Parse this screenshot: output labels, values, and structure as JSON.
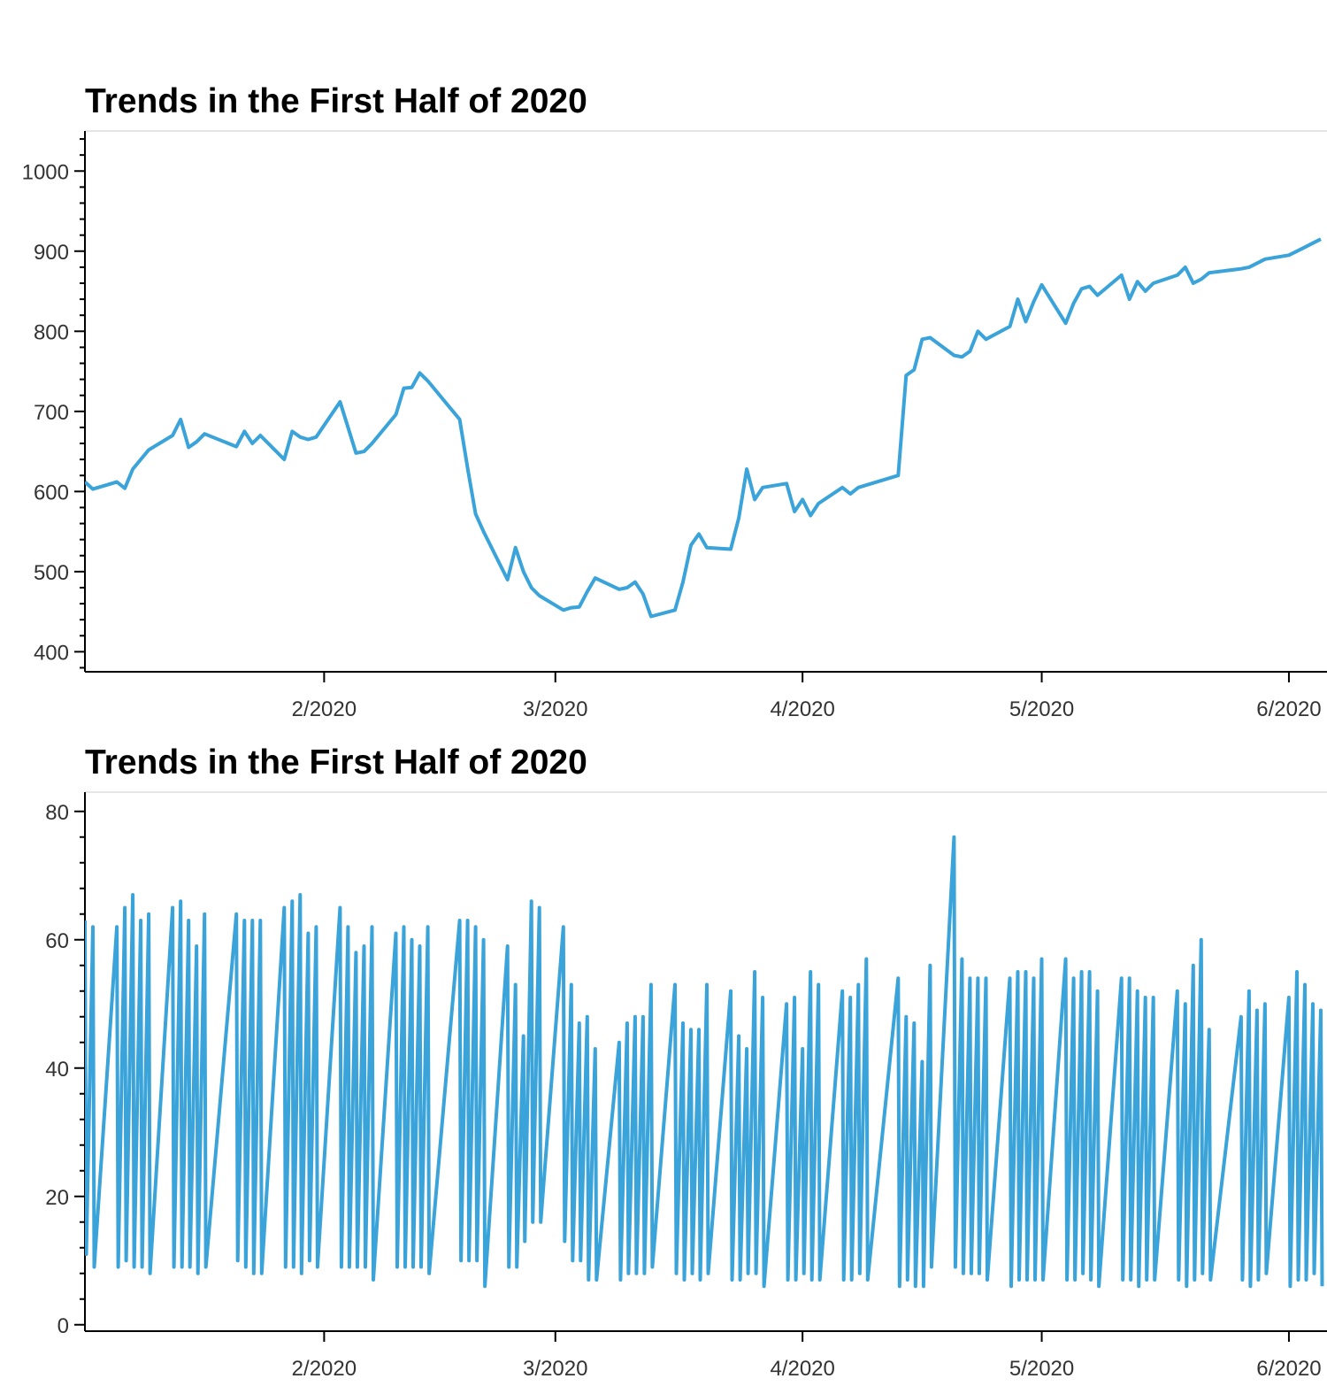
{
  "colors": {
    "line": "#3AA3D9",
    "axis": "#000000",
    "frame": "#e5e5e5"
  },
  "chart_data": [
    {
      "type": "line",
      "title": "Trends in the First Half of 2020",
      "xlabel": "",
      "ylabel": "",
      "x_ticks": [
        {
          "date": "2020-02-01",
          "label": "2/2020"
        },
        {
          "date": "2020-03-01",
          "label": "3/2020"
        },
        {
          "date": "2020-04-01",
          "label": "4/2020"
        },
        {
          "date": "2020-05-01",
          "label": "5/2020"
        },
        {
          "date": "2020-06-01",
          "label": "6/2020"
        }
      ],
      "xlim": [
        "2020-01-02",
        "2020-06-05"
      ],
      "ylim": [
        375,
        1050
      ],
      "y_ticks": [
        400,
        500,
        600,
        700,
        800,
        900,
        1000
      ],
      "grid": false,
      "series": [
        {
          "x": [
            "2020-01-02",
            "2020-01-03",
            "2020-01-06",
            "2020-01-07",
            "2020-01-08",
            "2020-01-09",
            "2020-01-10",
            "2020-01-13",
            "2020-01-14",
            "2020-01-15",
            "2020-01-16",
            "2020-01-17",
            "2020-01-21",
            "2020-01-22",
            "2020-01-23",
            "2020-01-24",
            "2020-01-27",
            "2020-01-28",
            "2020-01-29",
            "2020-01-30",
            "2020-01-31",
            "2020-02-03",
            "2020-02-04",
            "2020-02-05",
            "2020-02-06",
            "2020-02-07",
            "2020-02-10",
            "2020-02-11",
            "2020-02-12",
            "2020-02-13",
            "2020-02-14",
            "2020-02-18",
            "2020-02-19",
            "2020-02-20",
            "2020-02-21",
            "2020-02-24",
            "2020-02-25",
            "2020-02-26",
            "2020-02-27",
            "2020-02-28",
            "2020-03-02",
            "2020-03-03",
            "2020-03-04",
            "2020-03-05",
            "2020-03-06",
            "2020-03-09",
            "2020-03-10",
            "2020-03-11",
            "2020-03-12",
            "2020-03-13",
            "2020-03-16",
            "2020-03-17",
            "2020-03-18",
            "2020-03-19",
            "2020-03-20",
            "2020-03-23",
            "2020-03-24",
            "2020-03-25",
            "2020-03-26",
            "2020-03-27",
            "2020-03-30",
            "2020-03-31",
            "2020-04-01",
            "2020-04-02",
            "2020-04-03",
            "2020-04-06",
            "2020-04-07",
            "2020-04-08",
            "2020-04-09",
            "2020-04-13",
            "2020-04-14",
            "2020-04-15",
            "2020-04-16",
            "2020-04-17",
            "2020-04-20",
            "2020-04-21",
            "2020-04-22",
            "2020-04-23",
            "2020-04-24",
            "2020-04-27",
            "2020-04-28",
            "2020-04-29",
            "2020-04-30",
            "2020-05-01",
            "2020-05-04",
            "2020-05-05",
            "2020-05-06",
            "2020-05-07",
            "2020-05-08",
            "2020-05-11",
            "2020-05-12",
            "2020-05-13",
            "2020-05-14",
            "2020-05-15",
            "2020-05-18",
            "2020-05-19",
            "2020-05-20",
            "2020-05-21",
            "2020-05-22",
            "2020-05-26",
            "2020-05-27",
            "2020-05-28",
            "2020-05-29",
            "2020-06-01",
            "2020-06-02",
            "2020-06-03",
            "2020-06-04",
            "2020-06-05"
          ],
          "values": [
            612,
            603,
            612,
            604,
            628,
            640,
            652,
            670,
            690,
            655,
            662,
            672,
            656,
            675,
            660,
            670,
            640,
            675,
            668,
            665,
            668,
            712,
            680,
            648,
            650,
            660,
            696,
            729,
            730,
            748,
            738,
            690,
            629,
            572,
            550,
            490,
            530,
            500,
            480,
            470,
            452,
            455,
            456,
            475,
            492,
            478,
            480,
            487,
            472,
            444,
            452,
            487,
            533,
            547,
            530,
            528,
            567,
            628,
            590,
            605,
            610,
            575,
            590,
            570,
            585,
            605,
            597,
            605,
            608,
            620,
            745,
            752,
            790,
            792,
            770,
            768,
            775,
            800,
            790,
            806,
            840,
            812,
            837,
            858,
            810,
            835,
            853,
            856,
            845,
            870,
            840,
            862,
            850,
            860,
            870,
            880,
            860,
            865,
            873,
            878,
            880,
            885,
            890,
            895,
            900,
            905,
            910,
            915
          ],
          "name": ""
        }
      ]
    },
    {
      "type": "line",
      "title": "Trends in the First Half of 2020",
      "xlabel": "",
      "ylabel": "",
      "x_ticks": [
        {
          "date": "2020-02-01",
          "label": "2/2020"
        },
        {
          "date": "2020-03-01",
          "label": "3/2020"
        },
        {
          "date": "2020-04-01",
          "label": "4/2020"
        },
        {
          "date": "2020-05-01",
          "label": "5/2020"
        },
        {
          "date": "2020-06-01",
          "label": "6/2020"
        }
      ],
      "xlim": [
        "2020-01-02",
        "2020-06-05"
      ],
      "ylim": [
        -1,
        83
      ],
      "y_ticks": [
        0,
        20,
        40,
        60,
        80
      ],
      "grid": false,
      "series": [
        {
          "pairs": [
            [
              63,
              11
            ],
            [
              62,
              9
            ],
            [
              62,
              9
            ],
            [
              65,
              10
            ],
            [
              67,
              9
            ],
            [
              63,
              9
            ],
            [
              64,
              8
            ],
            [
              65,
              9
            ],
            [
              66,
              9
            ],
            [
              63,
              9
            ],
            [
              59,
              8
            ],
            [
              64,
              9
            ],
            [
              64,
              10
            ],
            [
              63,
              9
            ],
            [
              63,
              8
            ],
            [
              63,
              8
            ],
            [
              65,
              9
            ],
            [
              66,
              9
            ],
            [
              67,
              8
            ],
            [
              61,
              10
            ],
            [
              62,
              9
            ],
            [
              65,
              9
            ],
            [
              62,
              9
            ],
            [
              58,
              9
            ],
            [
              59,
              9
            ],
            [
              62,
              7
            ],
            [
              61,
              9
            ],
            [
              62,
              9
            ],
            [
              60,
              9
            ],
            [
              59,
              9
            ],
            [
              62,
              8
            ],
            [
              63,
              10
            ],
            [
              63,
              10
            ],
            [
              62,
              10
            ],
            [
              60,
              6
            ],
            [
              59,
              9
            ],
            [
              53,
              9
            ],
            [
              45,
              13
            ],
            [
              66,
              16
            ],
            [
              65,
              16
            ],
            [
              62,
              13
            ],
            [
              53,
              10
            ],
            [
              47,
              10
            ],
            [
              48,
              7
            ],
            [
              43,
              7
            ],
            [
              44,
              7
            ],
            [
              47,
              8
            ],
            [
              48,
              8
            ],
            [
              48,
              8
            ],
            [
              53,
              9
            ],
            [
              53,
              8
            ],
            [
              47,
              7
            ],
            [
              46,
              8
            ],
            [
              46,
              7
            ],
            [
              53,
              8
            ],
            [
              52,
              7
            ],
            [
              45,
              7
            ],
            [
              43,
              8
            ],
            [
              55,
              8
            ],
            [
              51,
              6
            ],
            [
              50,
              7
            ],
            [
              51,
              7
            ],
            [
              43,
              8
            ],
            [
              55,
              7
            ],
            [
              53,
              7
            ],
            [
              52,
              7
            ],
            [
              51,
              7
            ],
            [
              53,
              8
            ],
            [
              57,
              7
            ],
            [
              54,
              6
            ],
            [
              48,
              7
            ],
            [
              47,
              6
            ],
            [
              41,
              6
            ],
            [
              56,
              9
            ],
            [
              76,
              9
            ],
            [
              57,
              8
            ],
            [
              54,
              8
            ],
            [
              54,
              8
            ],
            [
              54,
              7
            ],
            [
              54,
              6
            ],
            [
              55,
              7
            ],
            [
              55,
              7
            ],
            [
              54,
              7
            ],
            [
              57,
              7
            ],
            [
              57,
              7
            ],
            [
              54,
              7
            ],
            [
              55,
              8
            ],
            [
              55,
              7
            ],
            [
              52,
              6
            ],
            [
              54,
              7
            ],
            [
              54,
              7
            ],
            [
              52,
              6
            ],
            [
              51,
              7
            ],
            [
              51,
              7
            ],
            [
              52,
              7
            ],
            [
              50,
              6
            ],
            [
              56,
              7
            ],
            [
              60,
              8
            ],
            [
              46,
              7
            ],
            [
              48,
              7
            ],
            [
              52,
              6
            ],
            [
              49,
              7
            ],
            [
              50,
              8
            ],
            [
              51,
              6
            ],
            [
              55,
              7
            ],
            [
              53,
              7
            ],
            [
              50,
              8
            ],
            [
              49,
              6
            ]
          ],
          "name": ""
        }
      ]
    }
  ]
}
